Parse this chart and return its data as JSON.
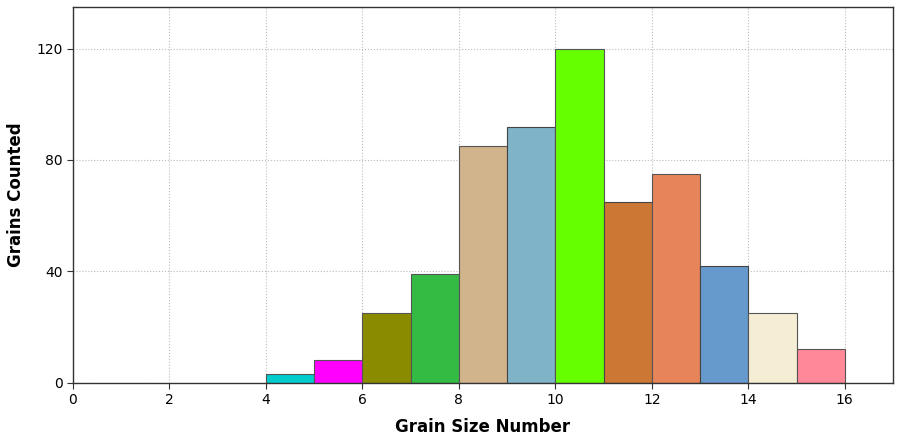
{
  "bars": [
    {
      "x": 4,
      "height": 3,
      "color": "#00CCCC",
      "edgecolor": "#555555"
    },
    {
      "x": 5,
      "height": 8,
      "color": "#FF00FF",
      "edgecolor": "#555555"
    },
    {
      "x": 6,
      "height": 25,
      "color": "#8B8B00",
      "edgecolor": "#555555"
    },
    {
      "x": 7,
      "height": 39,
      "color": "#33BB44",
      "edgecolor": "#555555"
    },
    {
      "x": 8,
      "height": 85,
      "color": "#D2B48C",
      "edgecolor": "#555555"
    },
    {
      "x": 9,
      "height": 92,
      "color": "#7FB3C8",
      "edgecolor": "#444444"
    },
    {
      "x": 10,
      "height": 120,
      "color": "#66FF00",
      "edgecolor": "#555555"
    },
    {
      "x": 11,
      "height": 65,
      "color": "#CC7733",
      "edgecolor": "#444444"
    },
    {
      "x": 12,
      "height": 75,
      "color": "#E8845A",
      "edgecolor": "#555555"
    },
    {
      "x": 13,
      "height": 42,
      "color": "#6699CC",
      "edgecolor": "#444444"
    },
    {
      "x": 14,
      "height": 25,
      "color": "#F5EED5",
      "edgecolor": "#555555"
    },
    {
      "x": 15,
      "height": 12,
      "color": "#FF8899",
      "edgecolor": "#555555"
    }
  ],
  "bar_width": 1.0,
  "xlim": [
    0,
    17
  ],
  "ylim": [
    0,
    135
  ],
  "xticks": [
    0,
    2,
    4,
    6,
    8,
    10,
    12,
    14,
    16
  ],
  "yticks": [
    0,
    40,
    80,
    120
  ],
  "xlabel": "Grain Size Number",
  "ylabel": "Grains Counted",
  "background_color": "#FFFFFF",
  "grid_color": "#BBBBBB",
  "grid_style": "dotted"
}
